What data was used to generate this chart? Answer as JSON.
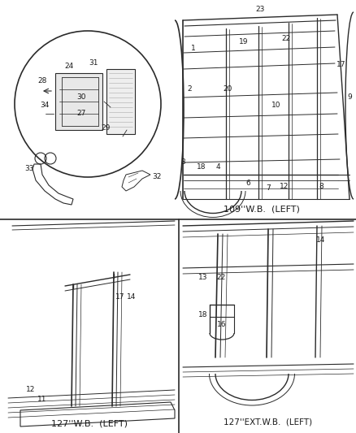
{
  "background_color": "#ffffff",
  "line_color": "#2a2a2a",
  "text_color": "#1a1a1a",
  "fig_width": 4.38,
  "fig_height": 5.33,
  "dpi": 100,
  "section_labels": {
    "top_right": "109''W.B.  (LEFT)",
    "bottom_left": "127''W.B.  (LEFT)",
    "bottom_right": "127''EXT.W.B.  (LEFT)"
  }
}
